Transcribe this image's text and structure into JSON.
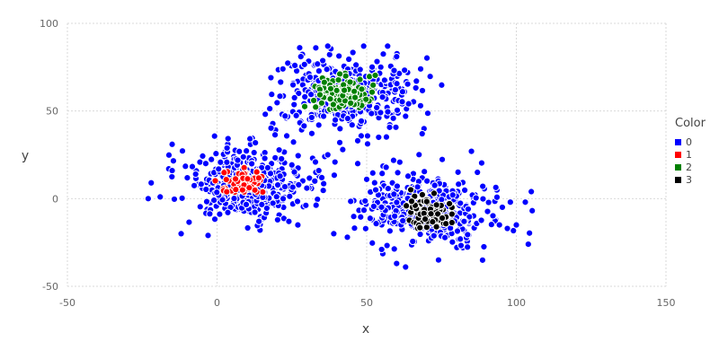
{
  "chart_data": {
    "type": "scatter",
    "title": "",
    "xlabel": "x",
    "ylabel": "y",
    "xlim": [
      -50,
      150
    ],
    "ylim": [
      -50,
      100
    ],
    "xticks": [
      -50,
      0,
      50,
      100,
      150
    ],
    "yticks": [
      -50,
      0,
      50,
      100
    ],
    "grid": true,
    "legend": {
      "title": "Color",
      "placement": "right"
    },
    "series": [
      {
        "name": "0",
        "color": "#0000ff",
        "clusters": [
          {
            "center": [
              10,
              8
            ],
            "spread": [
              10,
              10
            ],
            "count": 430
          },
          {
            "center": [
              43,
              60
            ],
            "spread": [
              11,
              10
            ],
            "count": 430
          },
          {
            "center": [
              70,
              -6
            ],
            "spread": [
              11,
              10
            ],
            "count": 430
          }
        ],
        "points": [
          [
            -23,
            0
          ],
          [
            -22,
            9
          ],
          [
            -19,
            1
          ],
          [
            -15,
            16
          ],
          [
            -15,
            31
          ],
          [
            -12,
            -20
          ],
          [
            -3,
            -21
          ],
          [
            14,
            -13
          ],
          [
            24,
            -13
          ],
          [
            27,
            -15
          ],
          [
            30,
            6
          ],
          [
            39,
            -20
          ],
          [
            42,
            28
          ],
          [
            55,
            -29
          ],
          [
            60,
            -37
          ],
          [
            63,
            -39
          ],
          [
            74,
            -35
          ],
          [
            98,
            -2
          ],
          [
            100,
            -15
          ],
          [
            104,
            -26
          ],
          [
            105,
            4
          ],
          [
            103,
            -2
          ],
          [
            97,
            -17
          ],
          [
            85,
            27
          ],
          [
            87,
            15
          ],
          [
            28,
            81
          ],
          [
            33,
            86
          ],
          [
            37,
            87
          ],
          [
            49,
            87
          ],
          [
            57,
            87
          ],
          [
            60,
            81
          ],
          [
            26,
            76
          ],
          [
            22,
            74
          ],
          [
            18,
            69
          ],
          [
            62,
            61
          ],
          [
            68,
            53
          ],
          [
            63,
            47
          ],
          [
            41,
            32
          ],
          [
            47,
            33
          ],
          [
            54,
            35
          ],
          [
            36,
            24
          ],
          [
            37,
            25
          ],
          [
            33,
            15
          ],
          [
            34,
            16
          ],
          [
            35,
            12
          ],
          [
            47,
            20
          ],
          [
            50,
            11
          ],
          [
            53,
            5
          ]
        ]
      },
      {
        "name": "1",
        "color": "#ff0000",
        "clusters": [
          {
            "center": [
              8,
              9
            ],
            "spread": [
              3.5,
              3.5
            ],
            "count": 65
          }
        ],
        "points": []
      },
      {
        "name": "2",
        "color": "#008000",
        "clusters": [
          {
            "center": [
              43,
              59
            ],
            "spread": [
              5,
              5
            ],
            "count": 150
          }
        ],
        "points": []
      },
      {
        "name": "3",
        "color": "#000000",
        "clusters": [
          {
            "center": [
              71,
              -8
            ],
            "spread": [
              4,
              4
            ],
            "count": 75
          }
        ],
        "points": []
      }
    ]
  }
}
